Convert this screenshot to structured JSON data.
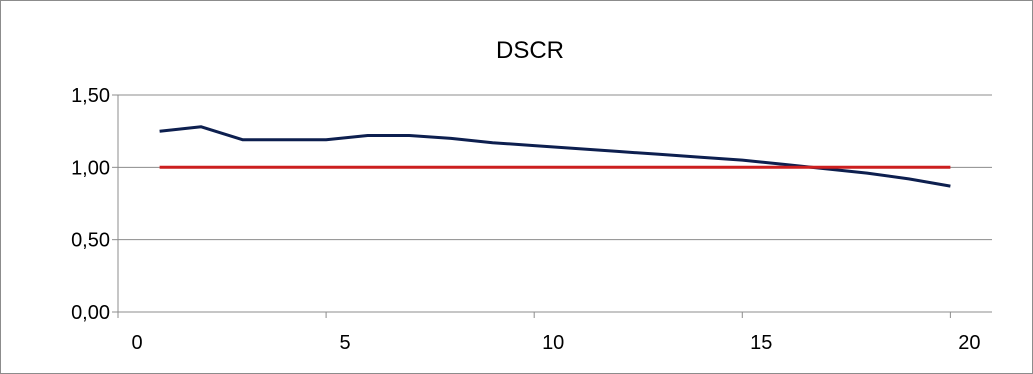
{
  "chart_data": {
    "type": "line",
    "title": "DSCR",
    "xlabel": "",
    "ylabel": "",
    "xlim": [
      0,
      21
    ],
    "ylim": [
      0,
      1.5
    ],
    "x_ticks": [
      {
        "value": 0,
        "label": "0"
      },
      {
        "value": 5,
        "label": "5"
      },
      {
        "value": 10,
        "label": "10"
      },
      {
        "value": 15,
        "label": "15"
      },
      {
        "value": 20,
        "label": "20"
      }
    ],
    "y_ticks": [
      {
        "value": 0,
        "label": "0,00"
      },
      {
        "value": 0.5,
        "label": "0,50"
      },
      {
        "value": 1.0,
        "label": "1,00"
      },
      {
        "value": 1.5,
        "label": "1,50"
      }
    ],
    "horizontal_gridlines": true,
    "legend": "none",
    "series": [
      {
        "color": "#0d1f4f",
        "points": [
          {
            "x": 1,
            "y": 1.25
          },
          {
            "x": 2,
            "y": 1.28
          },
          {
            "x": 3,
            "y": 1.19
          },
          {
            "x": 4,
            "y": 1.19
          },
          {
            "x": 5,
            "y": 1.19
          },
          {
            "x": 6,
            "y": 1.22
          },
          {
            "x": 7,
            "y": 1.22
          },
          {
            "x": 8,
            "y": 1.2
          },
          {
            "x": 9,
            "y": 1.17
          },
          {
            "x": 10,
            "y": 1.15
          },
          {
            "x": 11,
            "y": 1.13
          },
          {
            "x": 12,
            "y": 1.11
          },
          {
            "x": 13,
            "y": 1.09
          },
          {
            "x": 14,
            "y": 1.07
          },
          {
            "x": 15,
            "y": 1.05
          },
          {
            "x": 16,
            "y": 1.02
          },
          {
            "x": 17,
            "y": 0.99
          },
          {
            "x": 18,
            "y": 0.96
          },
          {
            "x": 19,
            "y": 0.92
          },
          {
            "x": 20,
            "y": 0.87
          }
        ]
      },
      {
        "color": "#cc1f1f",
        "points": [
          {
            "x": 1,
            "y": 1.0
          },
          {
            "x": 20,
            "y": 1.0
          }
        ]
      }
    ]
  }
}
